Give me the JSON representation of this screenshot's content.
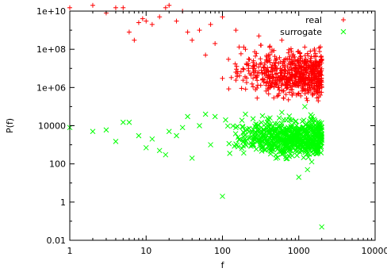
{
  "chart_data": {
    "type": "scatter",
    "xlabel": "f",
    "ylabel": "P(f)",
    "xscale": "log",
    "yscale": "log",
    "xlim": [
      1,
      10000
    ],
    "ylim": [
      0.01,
      10000000000
    ],
    "xticks": [
      1,
      10,
      100,
      1000,
      10000
    ],
    "xtick_labels": [
      "1",
      "10",
      "100",
      "1000",
      "10000"
    ],
    "yticks": [
      0.01,
      1,
      100,
      10000,
      1000000,
      100000000,
      10000000000
    ],
    "ytick_labels": [
      "0.01",
      "1",
      "100",
      "10000",
      "1e+06",
      "1e+08",
      "1e+10"
    ],
    "grid": false,
    "legend_position": "top-right",
    "approx_points_per_series": 2000,
    "series": [
      {
        "name": "real",
        "marker": "+",
        "color": "#ff0000",
        "sample_points": [
          [
            1,
            15000000000
          ],
          [
            2,
            20000000000
          ],
          [
            3,
            8000000000
          ],
          [
            4,
            15000000000
          ],
          [
            5,
            15000000000
          ],
          [
            6,
            800000000
          ],
          [
            7,
            300000000
          ],
          [
            8,
            2500000000
          ],
          [
            9,
            4000000000
          ],
          [
            10,
            3000000000
          ],
          [
            12,
            2000000000
          ],
          [
            15,
            5000000000
          ],
          [
            18,
            15000000000
          ],
          [
            20,
            20000000000
          ],
          [
            25,
            3000000000
          ],
          [
            30,
            10000000000
          ],
          [
            35,
            800000000
          ],
          [
            40,
            300000000
          ],
          [
            50,
            1000000000
          ],
          [
            60,
            50000000
          ],
          [
            70,
            2000000000
          ],
          [
            80,
            200000000
          ],
          [
            100,
            5000000000
          ],
          [
            100,
            3000000
          ],
          [
            120,
            30000000
          ],
          [
            150,
            1000000000
          ],
          [
            200,
            100000000
          ],
          [
            250,
            10000000
          ],
          [
            300,
            500000000
          ],
          [
            400,
            50000000
          ],
          [
            500,
            5000000
          ],
          [
            600,
            300000000
          ],
          [
            700,
            1000000
          ],
          [
            800,
            80000000
          ],
          [
            1000,
            500000
          ],
          [
            1200,
            20000000
          ],
          [
            1500,
            3000000
          ],
          [
            1800,
            200000
          ],
          [
            2000,
            30000000
          ],
          [
            2000,
            1000000
          ]
        ],
        "band": {
          "x_from": 100,
          "x_to": 2000,
          "y_min": 100000,
          "y_max": 300000000
        }
      },
      {
        "name": "surrogate",
        "marker": "x",
        "color": "#00ff00",
        "sample_points": [
          [
            1,
            8000
          ],
          [
            2,
            5000
          ],
          [
            3,
            6000
          ],
          [
            4,
            1500
          ],
          [
            5,
            15000
          ],
          [
            6,
            15000
          ],
          [
            8,
            3000
          ],
          [
            10,
            700
          ],
          [
            12,
            2000
          ],
          [
            15,
            500
          ],
          [
            18,
            300
          ],
          [
            20,
            5000
          ],
          [
            25,
            3000
          ],
          [
            30,
            8000
          ],
          [
            35,
            30000
          ],
          [
            40,
            200
          ],
          [
            50,
            10000
          ],
          [
            60,
            40000
          ],
          [
            70,
            1000
          ],
          [
            80,
            30000
          ],
          [
            100,
            2
          ],
          [
            110,
            20000
          ],
          [
            150,
            8000
          ],
          [
            200,
            40000
          ],
          [
            250,
            1000
          ],
          [
            300,
            3000
          ],
          [
            400,
            20000
          ],
          [
            500,
            300
          ],
          [
            600,
            50000
          ],
          [
            700,
            2000
          ],
          [
            800,
            8000
          ],
          [
            1000,
            20
          ],
          [
            1200,
            100000
          ],
          [
            1300,
            50
          ],
          [
            1500,
            30000
          ],
          [
            1800,
            500
          ],
          [
            2000,
            0.05
          ],
          [
            2000,
            8000
          ]
        ],
        "band": {
          "x_from": 100,
          "x_to": 2000,
          "y_min": 100,
          "y_max": 50000
        }
      }
    ]
  }
}
